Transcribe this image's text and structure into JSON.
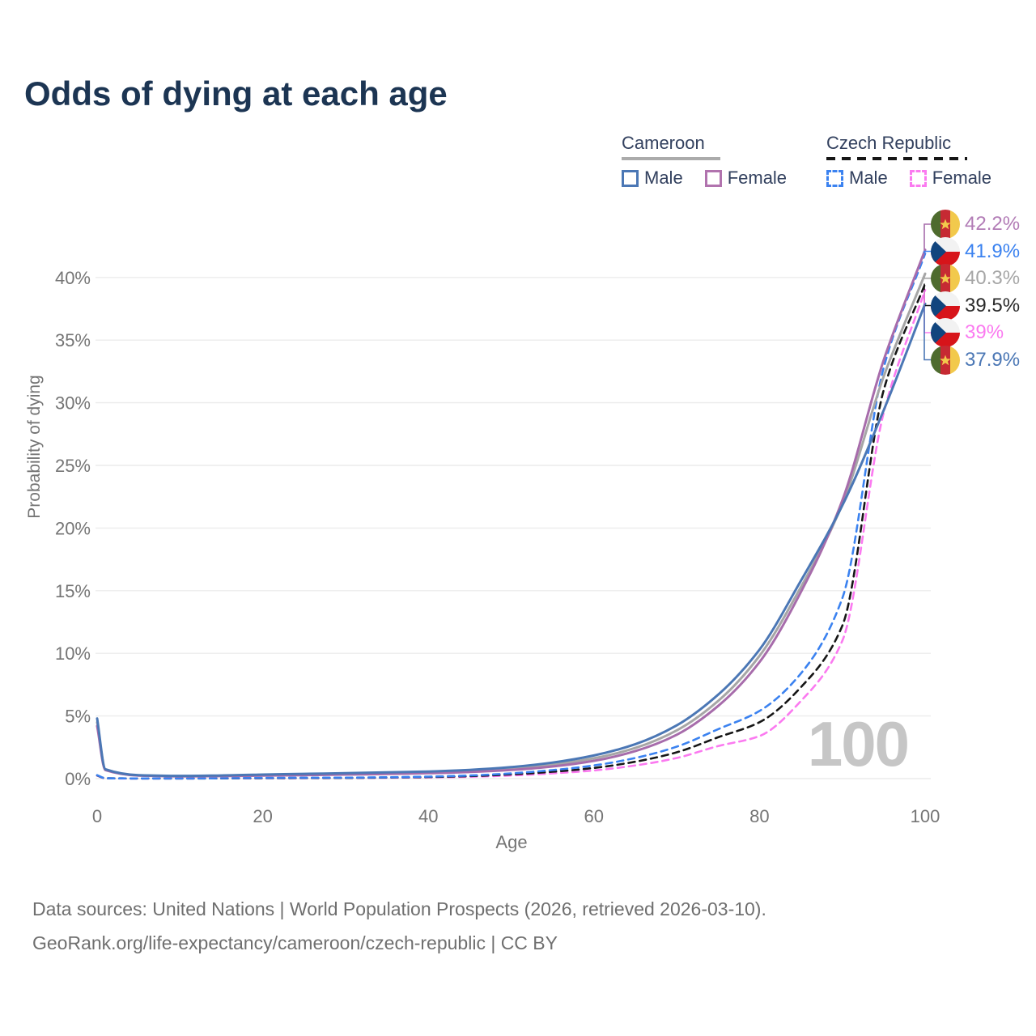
{
  "title": "Odds of dying at each age",
  "legend": {
    "groups": [
      {
        "country": "Cameroon",
        "line_color": "#ababab",
        "line_style": "solid",
        "items": [
          {
            "label": "Male",
            "color": "#4b77b5",
            "style": "solid"
          },
          {
            "label": "Female",
            "color": "#b173ae",
            "style": "solid"
          }
        ]
      },
      {
        "country": "Czech Republic",
        "line_color": "#161616",
        "line_style": "dashed",
        "items": [
          {
            "label": "Male",
            "color": "#3b82f0",
            "style": "dashed"
          },
          {
            "label": "Female",
            "color": "#fb7af0",
            "style": "dashed"
          }
        ]
      }
    ]
  },
  "watermark": "100",
  "footer": {
    "line1": "Data sources: United Nations | World Population Prospects (2026, retrieved 2026-03-10).",
    "line2": "GeoRank.org/life-expectancy/cameroon/czech-republic | CC BY"
  },
  "chart_data": {
    "type": "line",
    "title": "Odds of dying at each age",
    "xlabel": "Age",
    "ylabel": "Probability of dying",
    "xlim": [
      0,
      100
    ],
    "ylim": [
      0,
      44
    ],
    "grid": "horizontal",
    "legend_position": "top-right",
    "x_ticks": [
      0,
      20,
      40,
      60,
      80,
      100
    ],
    "y_ticks": [
      "0%",
      "5%",
      "10%",
      "15%",
      "20%",
      "25%",
      "30%",
      "35%",
      "40%"
    ],
    "y_tick_values": [
      0,
      5,
      10,
      15,
      20,
      25,
      30,
      35,
      40
    ],
    "ages": [
      0,
      1,
      5,
      10,
      15,
      20,
      25,
      30,
      35,
      40,
      45,
      50,
      55,
      60,
      65,
      70,
      75,
      80,
      85,
      90,
      95,
      100
    ],
    "series": [
      {
        "id": "czech_female",
        "name": "Czech Republic Female",
        "color": "#fb7af0",
        "dash": "dashed",
        "values": [
          0.24,
          0.02,
          0.01,
          0.01,
          0.02,
          0.03,
          0.04,
          0.05,
          0.07,
          0.1,
          0.15,
          0.25,
          0.42,
          0.65,
          1.05,
          1.65,
          2.6,
          3.4,
          6.2,
          11.0,
          29.2,
          39.0
        ]
      },
      {
        "id": "czech_both",
        "name": "Czech Republic",
        "color": "#161616",
        "dash": "dashed",
        "values": [
          0.26,
          0.03,
          0.01,
          0.01,
          0.02,
          0.04,
          0.05,
          0.06,
          0.09,
          0.13,
          0.2,
          0.34,
          0.55,
          0.85,
          1.35,
          2.1,
          3.3,
          4.5,
          7.3,
          12.2,
          31.0,
          39.5
        ]
      },
      {
        "id": "czech_male",
        "name": "Czech Republic Male",
        "color": "#3b82f0",
        "dash": "dashed",
        "values": [
          0.28,
          0.03,
          0.01,
          0.01,
          0.03,
          0.06,
          0.07,
          0.08,
          0.11,
          0.16,
          0.25,
          0.42,
          0.68,
          1.05,
          1.65,
          2.55,
          3.95,
          5.4,
          8.4,
          14.4,
          32.8,
          41.9
        ]
      },
      {
        "id": "cameroon_both",
        "name": "Cameroon",
        "color": "#a6a6a6",
        "dash": "solid",
        "values": [
          4.5,
          0.72,
          0.26,
          0.2,
          0.22,
          0.28,
          0.33,
          0.38,
          0.43,
          0.5,
          0.61,
          0.8,
          1.12,
          1.62,
          2.45,
          3.85,
          6.2,
          9.8,
          15.3,
          21.9,
          32.1,
          40.3
        ]
      },
      {
        "id": "cameroon_female",
        "name": "Cameroon Female",
        "color": "#a76cab",
        "dash": "solid",
        "values": [
          4.2,
          0.68,
          0.24,
          0.18,
          0.2,
          0.24,
          0.28,
          0.32,
          0.37,
          0.43,
          0.53,
          0.69,
          0.97,
          1.42,
          2.2,
          3.5,
          5.8,
          9.3,
          14.9,
          22.2,
          33.4,
          42.2
        ]
      },
      {
        "id": "cameroon_male",
        "name": "Cameroon Male",
        "color": "#4b77b5",
        "dash": "solid",
        "values": [
          4.8,
          0.75,
          0.28,
          0.22,
          0.25,
          0.32,
          0.38,
          0.43,
          0.5,
          0.57,
          0.7,
          0.92,
          1.28,
          1.85,
          2.75,
          4.25,
          6.7,
          10.3,
          15.8,
          21.8,
          29.4,
          37.9
        ]
      }
    ],
    "end_labels": [
      {
        "flag": "cameroon",
        "label": "42.2%",
        "color": "#b27cb6",
        "series_id": "cameroon_female"
      },
      {
        "flag": "czech",
        "label": "41.9%",
        "color": "#3b82f0",
        "series_id": "czech_male"
      },
      {
        "flag": "cameroon",
        "label": "40.3%",
        "color": "#a6a6a6",
        "series_id": "cameroon_both"
      },
      {
        "flag": "czech",
        "label": "39.5%",
        "color": "#2b2b2b",
        "series_id": "czech_both"
      },
      {
        "flag": "czech",
        "label": "39%",
        "color": "#fb7af0",
        "series_id": "czech_female"
      },
      {
        "flag": "cameroon",
        "label": "37.9%",
        "color": "#4b77b5",
        "series_id": "cameroon_male"
      }
    ]
  }
}
